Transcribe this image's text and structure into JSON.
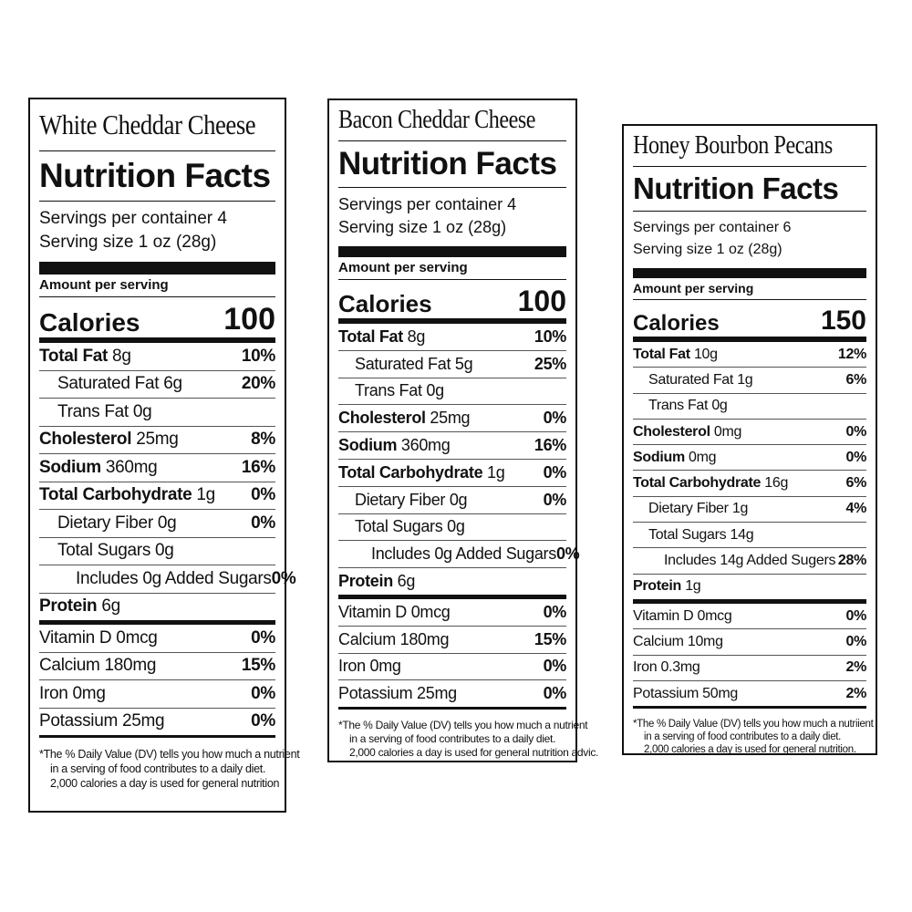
{
  "labels": [
    {
      "product": "White Cheddar Cheese",
      "heading": "Nutrition Facts",
      "servings": "Servings per container 4",
      "serving_size": "Serving size 1 oz (28g)",
      "amount_per_serving": "Amount per serving",
      "calories_label": "Calories",
      "calories": "100",
      "nutrients": [
        {
          "name": "Total Fat",
          "amount": "8g",
          "dv": "10%",
          "sub": [
            {
              "name": "Saturated Fat",
              "amount": "6g",
              "dv": "20%"
            },
            {
              "name": "Trans Fat",
              "amount": "0g"
            }
          ]
        },
        {
          "name": "Cholesterol",
          "amount": "25mg",
          "dv": "8%"
        },
        {
          "name": "Sodium",
          "amount": "360mg",
          "dv": "16%"
        },
        {
          "name": "Total Carbohydrate",
          "amount": "1g",
          "dv": "0%",
          "sub": [
            {
              "name": "Dietary Fiber",
              "amount": "0g",
              "dv": "0%"
            },
            {
              "name": "Total Sugars",
              "amount": "0g",
              "sub": [
                {
                  "name": "Includes 0g Added Sugars",
                  "dv": "0%"
                }
              ]
            }
          ]
        },
        {
          "name": "Protein",
          "amount": "6g"
        }
      ],
      "vitamins": [
        {
          "name": "Vitamin D",
          "amount": "0mcg",
          "dv": "0%"
        },
        {
          "name": "Calcium",
          "amount": "180mg",
          "dv": "15%"
        },
        {
          "name": "Iron",
          "amount": "0mg",
          "dv": "0%"
        },
        {
          "name": "Potassium",
          "amount": "25mg",
          "dv": "0%"
        }
      ],
      "footnote": [
        "*The % Daily Value (DV) tells you how much a nutrient",
        "in a serving of food contributes to a daily diet.",
        "2,000 calories a day is used for general nutrition"
      ]
    },
    {
      "product": "Bacon Cheddar Cheese",
      "heading": "Nutrition Facts",
      "servings": "Servings per container 4",
      "serving_size": "Serving size 1 oz (28g)",
      "amount_per_serving": "Amount per serving",
      "calories_label": "Calories",
      "calories": "100",
      "nutrients": [
        {
          "name": "Total Fat",
          "amount": "8g",
          "dv": "10%",
          "sub": [
            {
              "name": "Saturated Fat",
              "amount": "5g",
              "dv": "25%"
            },
            {
              "name": "Trans Fat",
              "amount": "0g"
            }
          ]
        },
        {
          "name": "Cholesterol",
          "amount": "25mg",
          "dv": "0%"
        },
        {
          "name": "Sodium",
          "amount": "360mg",
          "dv": "16%"
        },
        {
          "name": "Total Carbohydrate",
          "amount": "1g",
          "dv": "0%",
          "sub": [
            {
              "name": "Dietary Fiber",
              "amount": "0g",
              "dv": "0%"
            },
            {
              "name": "Total Sugars",
              "amount": "0g",
              "sub": [
                {
                  "name": "Includes 0g Added Sugars",
                  "dv": "0%"
                }
              ]
            }
          ]
        },
        {
          "name": "Protein",
          "amount": "6g"
        }
      ],
      "vitamins": [
        {
          "name": "Vitamin D",
          "amount": "0mcg",
          "dv": "0%"
        },
        {
          "name": "Calcium",
          "amount": "180mg",
          "dv": "15%"
        },
        {
          "name": "Iron",
          "amount": "0mg",
          "dv": "0%"
        },
        {
          "name": "Potassium",
          "amount": "25mg",
          "dv": "0%"
        }
      ],
      "footnote": [
        "*The % Daily Value (DV) tells you how much a nutrient",
        "in a serving of food contributes to a daily diet.",
        "2,000 calories a day is used for general nutrition advic."
      ]
    },
    {
      "product": "Honey Bourbon Pecans",
      "heading": "Nutrition Facts",
      "servings": "Servings per container 6",
      "serving_size": "Serving size 1 oz (28g)",
      "amount_per_serving": "Amount per serving",
      "calories_label": "Calories",
      "calories": "150",
      "nutrients": [
        {
          "name": "Total Fat",
          "amount": "10g",
          "dv": "12%",
          "sub": [
            {
              "name": "Saturated Fat",
              "amount": "1g",
              "dv": "6%"
            },
            {
              "name": "Trans Fat",
              "amount": "0g"
            }
          ]
        },
        {
          "name": "Cholesterol",
          "amount": "0mg",
          "dv": "0%"
        },
        {
          "name": "Sodium",
          "amount": "0mg",
          "dv": "0%"
        },
        {
          "name": "Total Carbohydrate",
          "amount": "16g",
          "dv": "6%",
          "sub": [
            {
              "name": "Dietary Fiber",
              "amount": "1g",
              "dv": "4%"
            },
            {
              "name": "Total Sugars",
              "amount": "14g",
              "sub": [
                {
                  "name": "Includes 14g Added Sugers",
                  "dv": "28%"
                }
              ]
            }
          ]
        },
        {
          "name": "Protein",
          "amount": "1g"
        }
      ],
      "vitamins": [
        {
          "name": "Vitamin D",
          "amount": "0mcg",
          "dv": "0%"
        },
        {
          "name": "Calcium",
          "amount": "10mg",
          "dv": "0%"
        },
        {
          "name": "Iron",
          "amount": "0.3mg",
          "dv": "2%"
        },
        {
          "name": "Potassium",
          "amount": "50mg",
          "dv": "2%"
        }
      ],
      "footnote": [
        "*The % Daily Value (DV) tells you how much a nutriient",
        "in a serving of food contributes to a daily diet.",
        "2,000 calories a day is used for general nutrition."
      ]
    }
  ]
}
